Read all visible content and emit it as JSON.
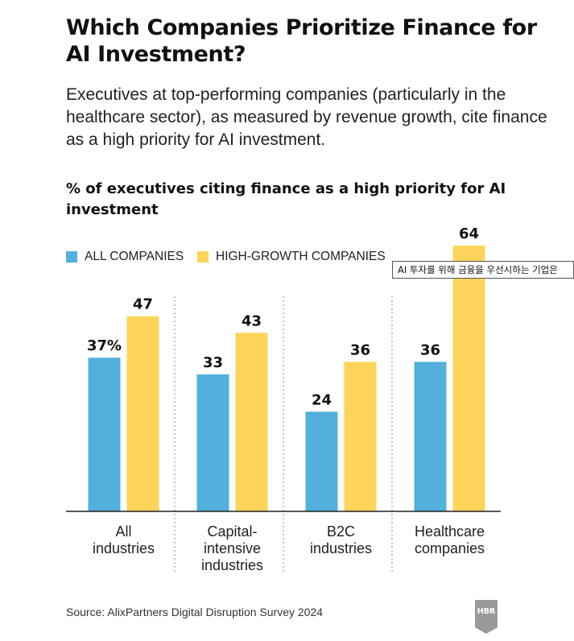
{
  "header": {
    "title": "Which Companies Prioritize Finance for AI Investment?",
    "subtitle": "Executives at top-performing companies (particularly in the healthcare sector), as measured by revenue growth, cite finance as a high priority for AI investment."
  },
  "tooltip": {
    "text": "AI 투자를 위해 금융을 우선시하는 기업은"
  },
  "footer": {
    "source": "Source: AlixPartners Digital Disruption Survey 2024",
    "logo_text": "HBR"
  },
  "colors": {
    "all_companies": "#52B0DC",
    "high_growth": "#FFD45A",
    "baseline": "#222222",
    "divider": "#888888"
  },
  "chart_data": {
    "type": "bar",
    "title": "% of executives citing finance as a high priority for AI investment",
    "categories": [
      [
        "All",
        "industries"
      ],
      [
        "Capital-",
        "intensive",
        "industries"
      ],
      [
        "B2C",
        "industries"
      ],
      [
        "Healthcare",
        "companies"
      ]
    ],
    "series": [
      {
        "name": "ALL COMPANIES",
        "values": [
          37,
          33,
          24,
          36
        ],
        "labels": [
          "37%",
          "33",
          "24",
          "36"
        ]
      },
      {
        "name": "HIGH-GROWTH COMPANIES",
        "values": [
          47,
          43,
          36,
          64
        ],
        "labels": [
          "47",
          "43",
          "36",
          "64"
        ]
      }
    ],
    "ylim": [
      0,
      64
    ],
    "legend_position": "top-left",
    "grid": false
  }
}
